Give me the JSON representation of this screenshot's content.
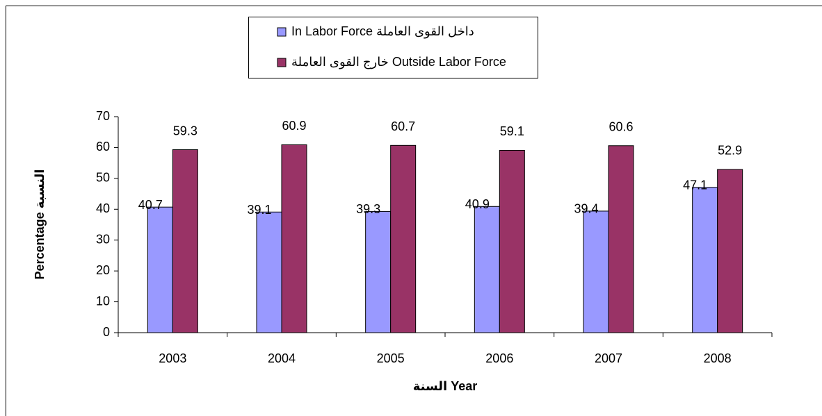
{
  "chart_data": {
    "type": "bar",
    "categories": [
      "2003",
      "2004",
      "2005",
      "2006",
      "2007",
      "2008"
    ],
    "series": [
      {
        "name": "In Labor Force داخل القوى العاملة",
        "color": "#9999ff",
        "values": [
          40.7,
          39.1,
          39.3,
          40.9,
          39.4,
          47.1
        ]
      },
      {
        "name": "خارج القوى العاملة Outside Labor Force",
        "color": "#993366",
        "values": [
          59.3,
          60.9,
          60.7,
          59.1,
          60.6,
          52.9
        ]
      }
    ],
    "ylim": [
      0,
      70
    ],
    "yticks": [
      0,
      10,
      20,
      30,
      40,
      50,
      60,
      70
    ],
    "xlabel": "السنة  Year",
    "ylabel": "Percentage  النسبة",
    "grid": false
  }
}
